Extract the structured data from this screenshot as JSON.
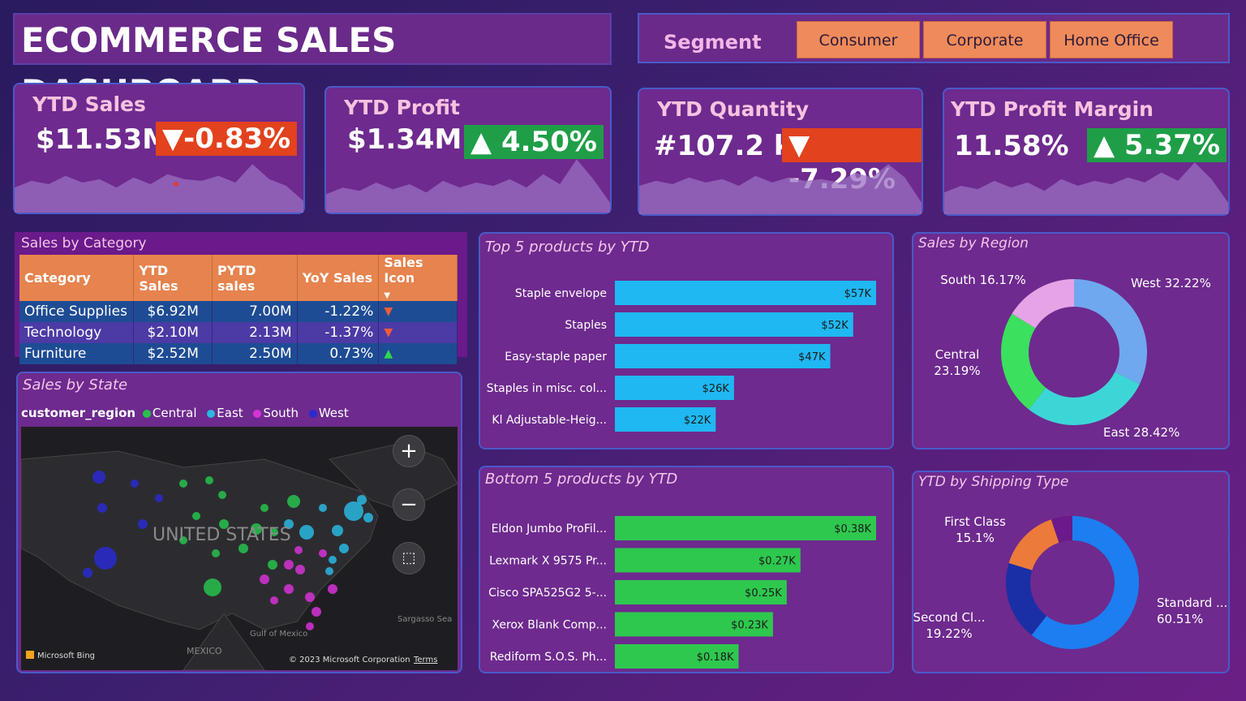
{
  "header": {
    "title": "ECOMMERCE SALES DASHBOARD"
  },
  "segment": {
    "label": "Segment",
    "options": [
      "Consumer",
      "Corporate",
      "Home Office"
    ]
  },
  "kpis": [
    {
      "title": "YTD Sales",
      "value": "$11.53M",
      "change": "▼-0.83%",
      "direction": "down",
      "spark": [
        30,
        38,
        34,
        44,
        36,
        40,
        30,
        42,
        34,
        46,
        40,
        38,
        44,
        36,
        58,
        40,
        32,
        14
      ]
    },
    {
      "title": "YTD Profit",
      "value": "$1.34M",
      "change": "▲ 4.50%",
      "direction": "up",
      "spark": [
        22,
        30,
        26,
        36,
        28,
        34,
        24,
        38,
        30,
        36,
        32,
        40,
        30,
        46,
        34,
        64,
        40,
        12
      ]
    },
    {
      "title": "YTD Quantity",
      "value": "#107.2 k",
      "change": "▼ -7.29%",
      "direction": "down",
      "spark": [
        34,
        40,
        36,
        44,
        38,
        42,
        34,
        46,
        38,
        44,
        40,
        42,
        38,
        50,
        44,
        60,
        44,
        14
      ]
    },
    {
      "title": "YTD Profit Margin",
      "value": "11.58%",
      "change": "▲ 5.37%",
      "direction": "up",
      "spark": [
        26,
        34,
        30,
        40,
        32,
        38,
        28,
        42,
        34,
        40,
        36,
        44,
        38,
        50,
        40,
        62,
        42,
        14
      ]
    }
  ],
  "sales_by_category": {
    "title": "Sales by Category",
    "columns": [
      "Category",
      "YTD Sales",
      "PYTD sales",
      "YoY Sales",
      "Sales Icon"
    ],
    "rows": [
      {
        "category": "Office Supplies",
        "ytd": "$6.92M",
        "pytd": "7.00M",
        "yoy": "-1.22%",
        "icon": "▼",
        "dir": "down"
      },
      {
        "category": "Technology",
        "ytd": "$2.10M",
        "pytd": "2.13M",
        "yoy": "-1.37%",
        "icon": "▼",
        "dir": "down"
      },
      {
        "category": "Furniture",
        "ytd": "$2.52M",
        "pytd": "2.50M",
        "yoy": "0.73%",
        "icon": "▲",
        "dir": "up"
      }
    ]
  },
  "sales_by_state": {
    "title": "Sales by State",
    "legend_title": "customer_region",
    "legend": [
      {
        "name": "Central",
        "color": "#27c24c"
      },
      {
        "name": "East",
        "color": "#2ab7e0"
      },
      {
        "name": "South",
        "color": "#d633d6"
      },
      {
        "name": "West",
        "color": "#2a2ad0"
      }
    ],
    "map_labels": {
      "country": "UNITED STATES",
      "mexico": "MEXICO",
      "gulf": "Gulf of Mexico",
      "sea": "Sargasso Sea",
      "attribution": "Microsoft Bing",
      "copyright": "© 2023 Microsoft Corporation",
      "terms": "Terms"
    }
  },
  "chart_data": [
    {
      "type": "bar",
      "title": "Top 5 products by YTD",
      "categories": [
        "Staple envelope",
        "Staples",
        "Easy-staple paper",
        "Staples in misc. col...",
        "Kl Adjustable-Heig..."
      ],
      "values": [
        57,
        52,
        47,
        26,
        22
      ],
      "value_labels": [
        "$57K",
        "$52K",
        "$47K",
        "$26K",
        "$22K"
      ],
      "color": "#1fb8f2"
    },
    {
      "type": "bar",
      "title": "Bottom 5 products by YTD",
      "categories": [
        "Eldon Jumbo ProFil...",
        "Lexmark X 9575 Pr...",
        "Cisco SPA525G2 5-...",
        "Xerox Blank Comp...",
        "Rediform S.O.S. Ph..."
      ],
      "values": [
        0.38,
        0.27,
        0.25,
        0.23,
        0.18
      ],
      "value_labels": [
        "$0.38K",
        "$0.27K",
        "$0.25K",
        "$0.23K",
        "$0.18K"
      ],
      "color": "#2ec84e"
    },
    {
      "type": "pie",
      "title": "Sales by Region",
      "slices": [
        {
          "label": "West 32.22%",
          "value": 32.22,
          "color": "#6fa8ef"
        },
        {
          "label": "East 28.42%",
          "value": 28.42,
          "color": "#3dd6d6"
        },
        {
          "label": "Central 23.19%",
          "value": 23.19,
          "color": "#3be05f"
        },
        {
          "label": "South 16.17%",
          "value": 16.17,
          "color": "#e6a3e6"
        }
      ]
    },
    {
      "type": "pie",
      "title": "YTD by Shipping Type",
      "slices": [
        {
          "label": "Standard ... 60.51%",
          "value": 60.51,
          "color": "#1c7ef0"
        },
        {
          "label": "Second Cl... 19.22%",
          "value": 19.22,
          "color": "#1a2fa6"
        },
        {
          "label": "First Class 15.1%",
          "value": 15.1,
          "color": "#ec7a3a"
        },
        {
          "label": "",
          "value": 5.17,
          "color": "#6a1a8a"
        }
      ]
    }
  ]
}
